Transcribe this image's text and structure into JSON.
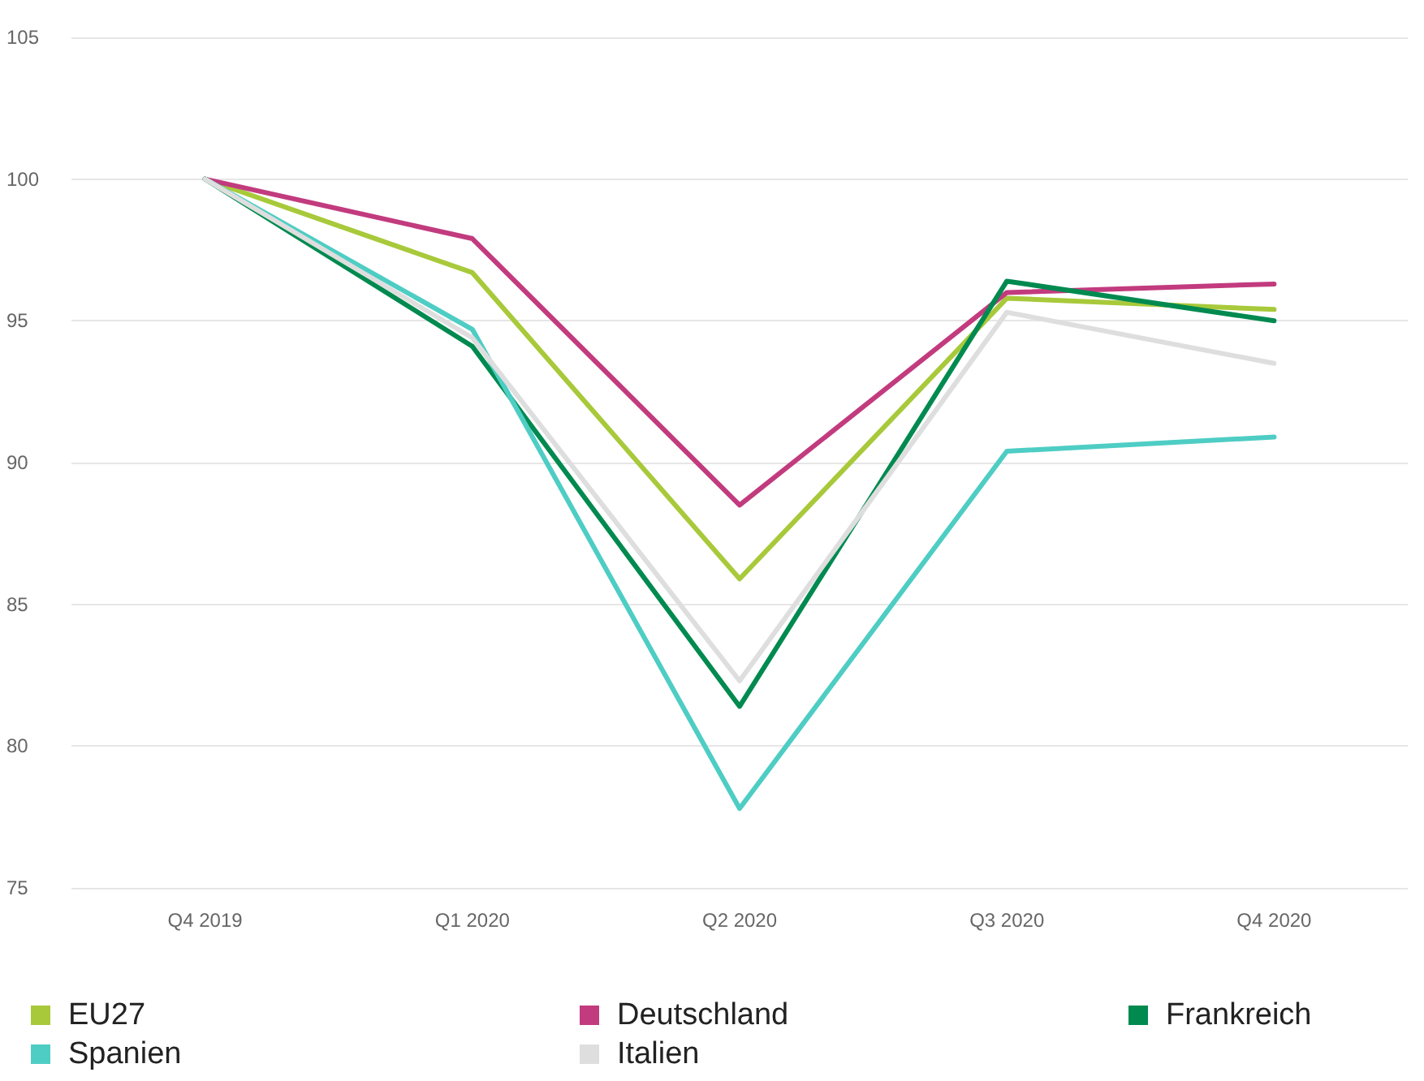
{
  "chart_data": {
    "type": "line",
    "categories": [
      "Q4 2019",
      "Q1 2020",
      "Q2 2020",
      "Q3 2020",
      "Q4 2020"
    ],
    "series": [
      {
        "name": "EU27",
        "color": "#a8c93a",
        "values": [
          100,
          96.7,
          85.9,
          95.8,
          95.4
        ]
      },
      {
        "name": "Deutschland",
        "color": "#c23b7e",
        "values": [
          100,
          97.9,
          88.5,
          96.0,
          96.3
        ]
      },
      {
        "name": "Frankreich",
        "color": "#008a50",
        "values": [
          100,
          94.1,
          81.4,
          96.4,
          95.0
        ]
      },
      {
        "name": "Spanien",
        "color": "#4ecdc4",
        "values": [
          100,
          94.7,
          77.8,
          90.4,
          90.9
        ]
      },
      {
        "name": "Italien",
        "color": "#dedede",
        "values": [
          100,
          94.4,
          82.3,
          95.3,
          93.5
        ]
      }
    ],
    "ylim": [
      75,
      105
    ],
    "yticks": [
      75,
      80,
      85,
      90,
      95,
      100,
      105
    ],
    "grid": "y",
    "legend": "bottom",
    "marker": "none",
    "line_style": "solid"
  }
}
